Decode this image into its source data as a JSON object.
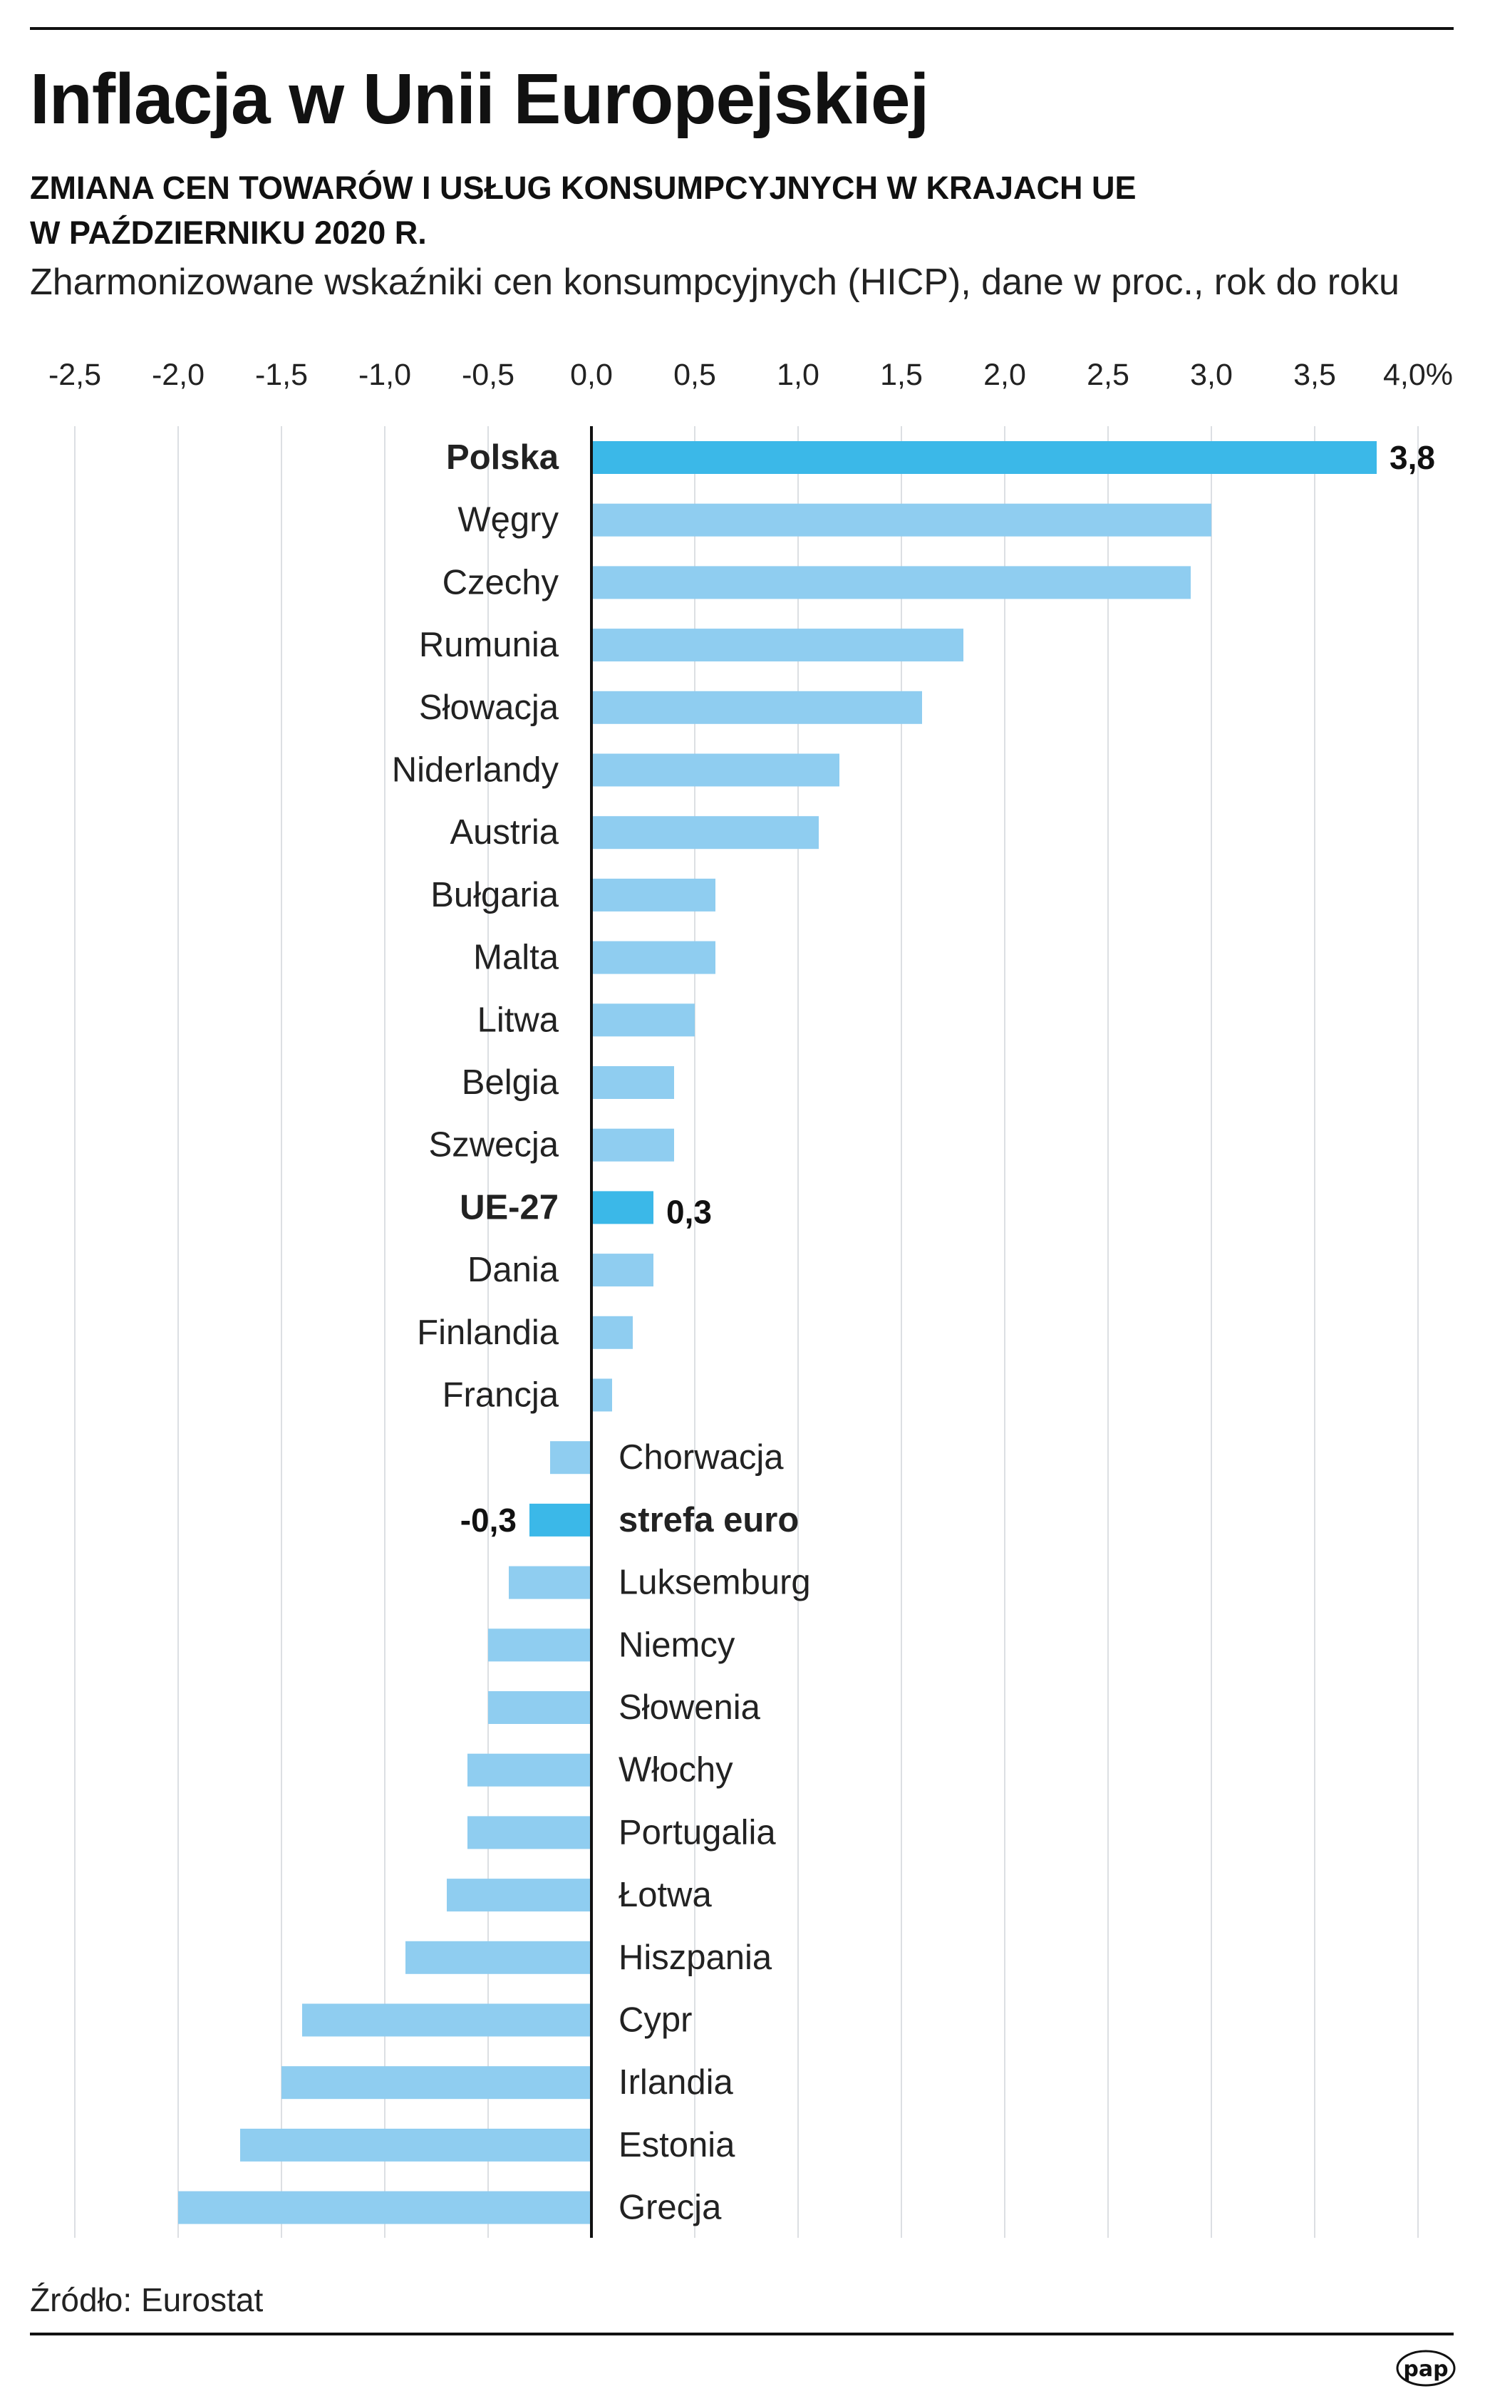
{
  "header": {
    "title": "Inflacja w Unii Europejskiej",
    "subtitle_line1": "ZMIANA CEN TOWARÓW I USŁUG KONSUMPCYJNYCH W KRAJACH UE",
    "subtitle_line2": "W PAŹDZIERNIKU 2020 R.",
    "description": "Zharmonizowane wskaźniki cen konsumpcyjnych (HICP), dane w proc., rok do roku"
  },
  "footer": {
    "source": "Źródło: Eurostat",
    "logo": "pap"
  },
  "colors": {
    "highlight": "#3bb8e8",
    "normal": "#8fcdf0",
    "grid": "#dcdfe3",
    "axis": "#111111"
  },
  "chart_data": {
    "type": "bar",
    "orientation": "horizontal",
    "xlim": [
      -2.5,
      4.0
    ],
    "ticks": [
      -2.5,
      -2.0,
      -1.5,
      -1.0,
      -0.5,
      0.0,
      0.5,
      1.0,
      1.5,
      2.0,
      2.5,
      3.0,
      3.5,
      4.0
    ],
    "tick_labels": [
      "-2,5",
      "-2,0",
      "-1,5",
      "-1,0",
      "-0,5",
      "0,0",
      "0,5",
      "1,0",
      "1,5",
      "2,0",
      "2,5",
      "3,0",
      "3,5",
      "4,0%"
    ],
    "grid": true,
    "categories": [
      "Polska",
      "Węgry",
      "Czechy",
      "Rumunia",
      "Słowacja",
      "Niderlandy",
      "Austria",
      "Bułgaria",
      "Malta",
      "Litwa",
      "Belgia",
      "Szwecja",
      "UE-27",
      "Dania",
      "Finlandia",
      "Francja",
      "Chorwacja",
      "strefa euro",
      "Luksemburg",
      "Niemcy",
      "Słowenia",
      "Włochy",
      "Portugalia",
      "Łotwa",
      "Hiszpania",
      "Cypr",
      "Irlandia",
      "Estonia",
      "Grecja"
    ],
    "values": [
      3.8,
      3.0,
      2.9,
      1.8,
      1.6,
      1.2,
      1.1,
      0.6,
      0.6,
      0.5,
      0.4,
      0.4,
      0.3,
      0.3,
      0.2,
      0.1,
      -0.2,
      -0.3,
      -0.4,
      -0.5,
      -0.5,
      -0.6,
      -0.6,
      -0.7,
      -0.9,
      -1.4,
      -1.5,
      -1.7,
      -2.0
    ],
    "highlighted": [
      "Polska",
      "UE-27",
      "strefa euro"
    ],
    "data_labels": {
      "Polska": "3,8",
      "UE-27": "0,3",
      "strefa euro": "-0,3"
    }
  }
}
